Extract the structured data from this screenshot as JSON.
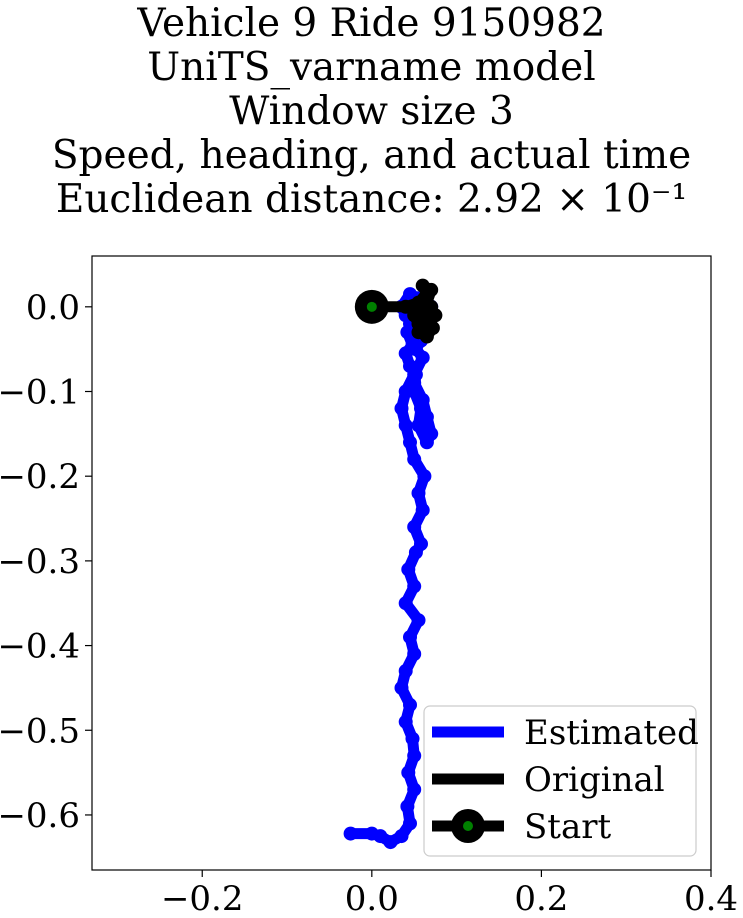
{
  "chart_data": {
    "type": "line",
    "title_lines": [
      "Vehicle 9 Ride 9150982",
      "UniTS_varname model",
      "Window size 3",
      "Speed, heading, and actual time",
      "Euclidean distance: 2.92 × 10⁻¹"
    ],
    "xlim": [
      -0.33,
      0.4
    ],
    "ylim": [
      -0.665,
      0.06
    ],
    "x_ticks": [
      -0.2,
      0.0,
      0.2,
      0.4
    ],
    "x_tick_labels": [
      "−0.2",
      "0.0",
      "0.2",
      "0.4"
    ],
    "y_ticks": [
      0.0,
      -0.1,
      -0.2,
      -0.3,
      -0.4,
      -0.5,
      -0.6
    ],
    "y_tick_labels": [
      "0.0",
      "−0.1",
      "−0.2",
      "−0.3",
      "−0.4",
      "−0.5",
      "−0.6"
    ],
    "grid": false,
    "legend_position": "lower-right",
    "series": [
      {
        "name": "Estimated",
        "color": "#0000ff",
        "x": [
          -0.025,
          0.0,
          0.01,
          0.022,
          0.035,
          0.045,
          0.042,
          0.05,
          0.043,
          0.05,
          0.048,
          0.04,
          0.045,
          0.035,
          0.04,
          0.05,
          0.045,
          0.055,
          0.04,
          0.05,
          0.043,
          0.052,
          0.058,
          0.05,
          0.06,
          0.055,
          0.062,
          0.05,
          0.045,
          0.04,
          0.035,
          0.04,
          0.05,
          0.06,
          0.052,
          0.058,
          0.05,
          0.045,
          0.06,
          0.07,
          0.055,
          0.045,
          0.035,
          0.04,
          0.05,
          0.042,
          0.048,
          0.04,
          0.045,
          0.052,
          0.05,
          0.058,
          0.055,
          0.065,
          0.07,
          0.065,
          0.06,
          0.05
        ],
        "y": [
          -0.622,
          -0.622,
          -0.625,
          -0.632,
          -0.625,
          -0.61,
          -0.59,
          -0.57,
          -0.55,
          -0.53,
          -0.51,
          -0.49,
          -0.47,
          -0.45,
          -0.43,
          -0.41,
          -0.39,
          -0.37,
          -0.35,
          -0.33,
          -0.31,
          -0.29,
          -0.28,
          -0.26,
          -0.24,
          -0.22,
          -0.2,
          -0.18,
          -0.16,
          -0.14,
          -0.12,
          -0.1,
          -0.08,
          -0.06,
          -0.05,
          -0.04,
          -0.03,
          -0.02,
          -0.01,
          0.0,
          0.01,
          0.015,
          0.0,
          -0.01,
          -0.02,
          -0.03,
          -0.045,
          -0.055,
          -0.07,
          -0.08,
          -0.1,
          -0.12,
          -0.14,
          -0.16,
          -0.15,
          -0.13,
          -0.11,
          -0.09
        ]
      },
      {
        "name": "Original",
        "color": "#000000",
        "x": [
          0.0,
          0.04,
          0.055,
          0.065,
          0.06,
          0.07,
          0.065,
          0.075,
          0.06,
          0.055,
          0.065,
          0.072,
          0.068,
          0.06,
          0.05,
          0.055,
          0.065,
          0.07,
          0.062
        ],
        "y": [
          0.0,
          0.0,
          0.005,
          0.015,
          0.025,
          0.02,
          0.005,
          -0.01,
          -0.02,
          -0.03,
          -0.035,
          -0.025,
          -0.01,
          0.0,
          -0.01,
          -0.02,
          -0.015,
          0.0,
          0.01
        ]
      }
    ],
    "start_point": {
      "name": "Start",
      "x": 0.0,
      "y": 0.0,
      "color": "#000000",
      "inner_color": "#008000"
    }
  }
}
